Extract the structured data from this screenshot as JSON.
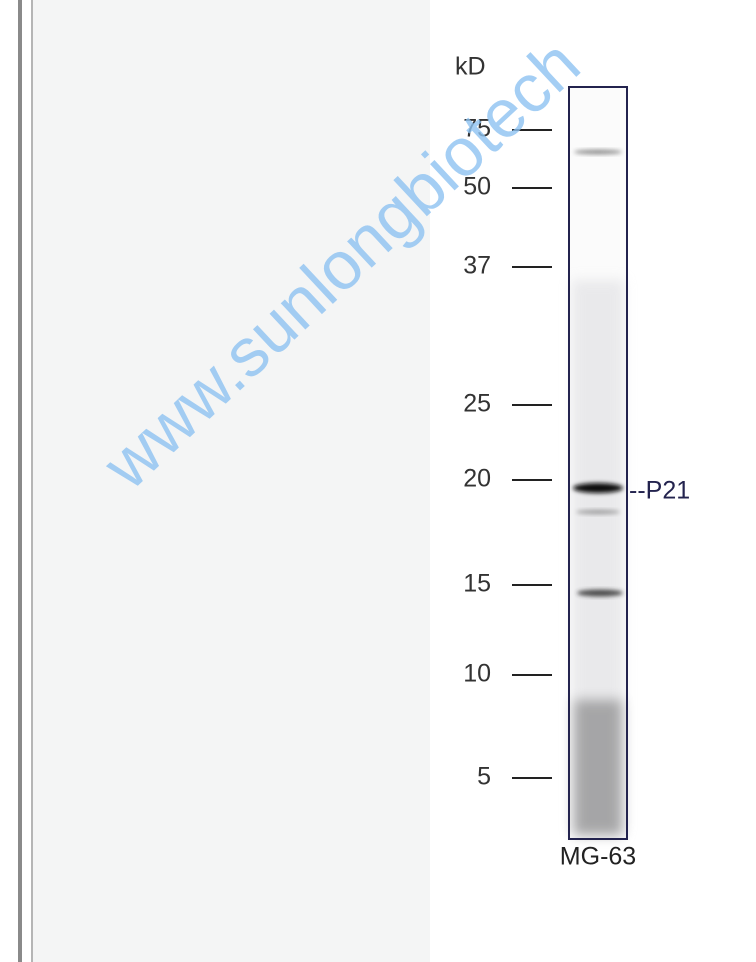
{
  "figure": {
    "unit_label": "kD",
    "markers": [
      "75",
      "50",
      "37",
      "25",
      "20",
      "15",
      "10",
      "5"
    ],
    "band_label": "--P21",
    "lane_label": "MG-63",
    "watermark": "www.sunlongbiotech"
  }
}
